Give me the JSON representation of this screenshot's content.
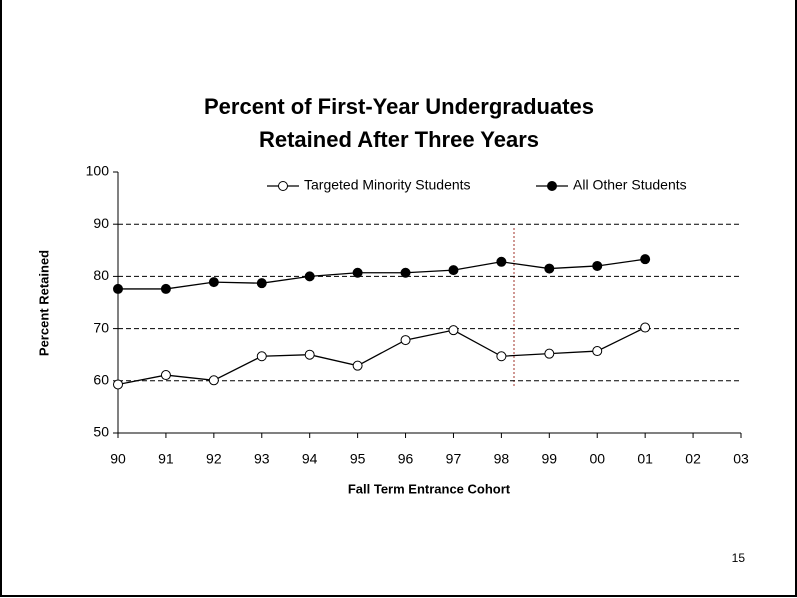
{
  "chart_data": {
    "type": "line",
    "title": [
      "Percent of First-Year Undergraduates",
      "Retained After Three Years"
    ],
    "x_label": "Fall Term Entrance Cohort",
    "y_label": "Percent Retained",
    "categories": [
      "90",
      "91",
      "92",
      "93",
      "94",
      "95",
      "96",
      "97",
      "98",
      "99",
      "00",
      "01",
      "02",
      "03"
    ],
    "series": [
      {
        "name": "Targeted Minority Students",
        "color": "#ffffff",
        "values": [
          59.3,
          61.1,
          60.1,
          64.7,
          65.0,
          62.9,
          67.8,
          69.7,
          64.7,
          65.2,
          65.7,
          70.2,
          null,
          null
        ]
      },
      {
        "name": "All Other Students",
        "color": "#000000",
        "values": [
          77.6,
          77.6,
          78.9,
          78.7,
          80.0,
          80.7,
          80.7,
          81.2,
          82.8,
          81.5,
          82.0,
          83.3,
          null,
          null
        ]
      }
    ],
    "ylim": [
      50,
      100
    ],
    "yticks": [
      50,
      60,
      70,
      80,
      90,
      100
    ],
    "grid": true
  },
  "page_number": "15"
}
